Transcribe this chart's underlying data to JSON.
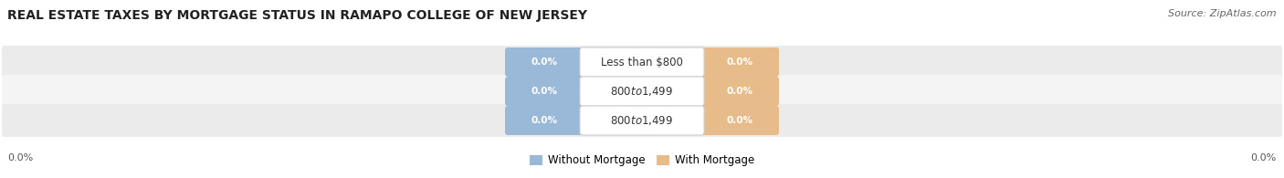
{
  "title": "REAL ESTATE TAXES BY MORTGAGE STATUS IN RAMAPO COLLEGE OF NEW JERSEY",
  "source": "Source: ZipAtlas.com",
  "categories": [
    "Less than $800",
    "$800 to $1,499",
    "$800 to $1,499"
  ],
  "without_mortgage": [
    0.0,
    0.0,
    0.0
  ],
  "with_mortgage": [
    0.0,
    0.0,
    0.0
  ],
  "color_without": "#9ab8d8",
  "color_with": "#e8bc8a",
  "label_without": "Without Mortgage",
  "label_with": "With Mortgage",
  "title_fontsize": 10,
  "source_fontsize": 8,
  "axis_label_left": "0.0%",
  "axis_label_right": "0.0%",
  "row_bg_colors": [
    "#ebebeb",
    "#f4f4f4",
    "#ebebeb"
  ],
  "fig_width": 14.06,
  "fig_height": 1.95,
  "bar_value_fontsize": 7.5,
  "category_fontsize": 8.5,
  "legend_fontsize": 8.5
}
